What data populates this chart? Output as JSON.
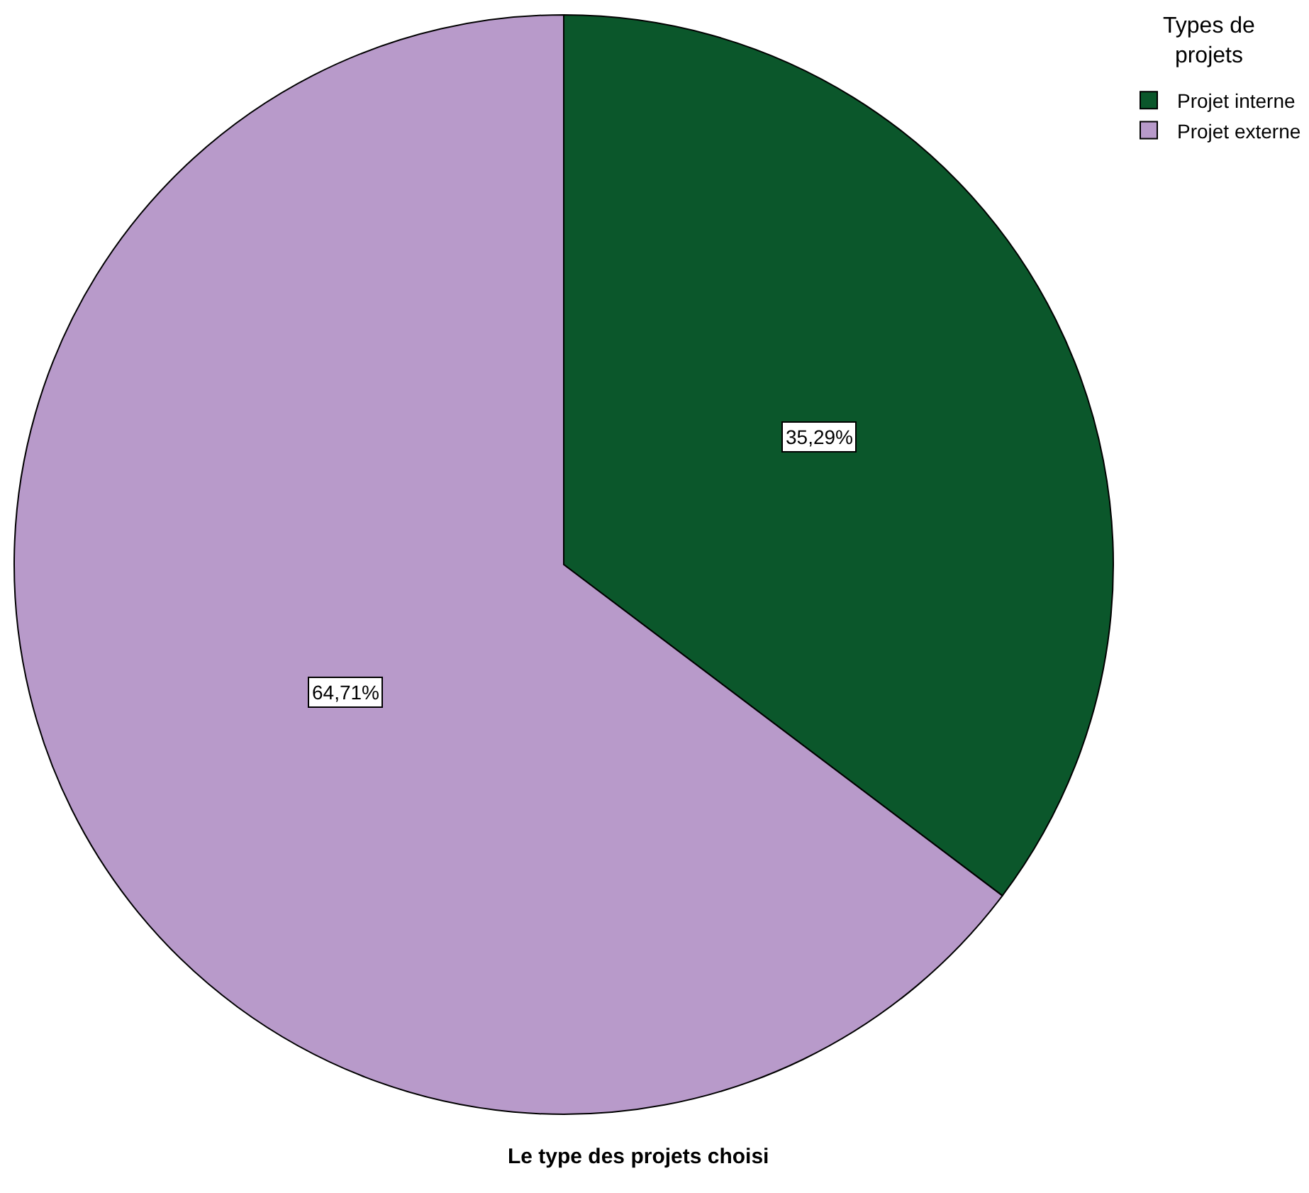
{
  "chart_data": {
    "type": "pie",
    "title": "Le type des projets choisi",
    "legend_title": "Types de projets",
    "categories": [
      "Projet interne",
      "Projet externe"
    ],
    "values": [
      35.29,
      64.71
    ],
    "colors": [
      "#0b572b",
      "#b89aca"
    ],
    "value_labels": [
      "35,29%",
      "64,71%"
    ],
    "legend": "top right"
  }
}
